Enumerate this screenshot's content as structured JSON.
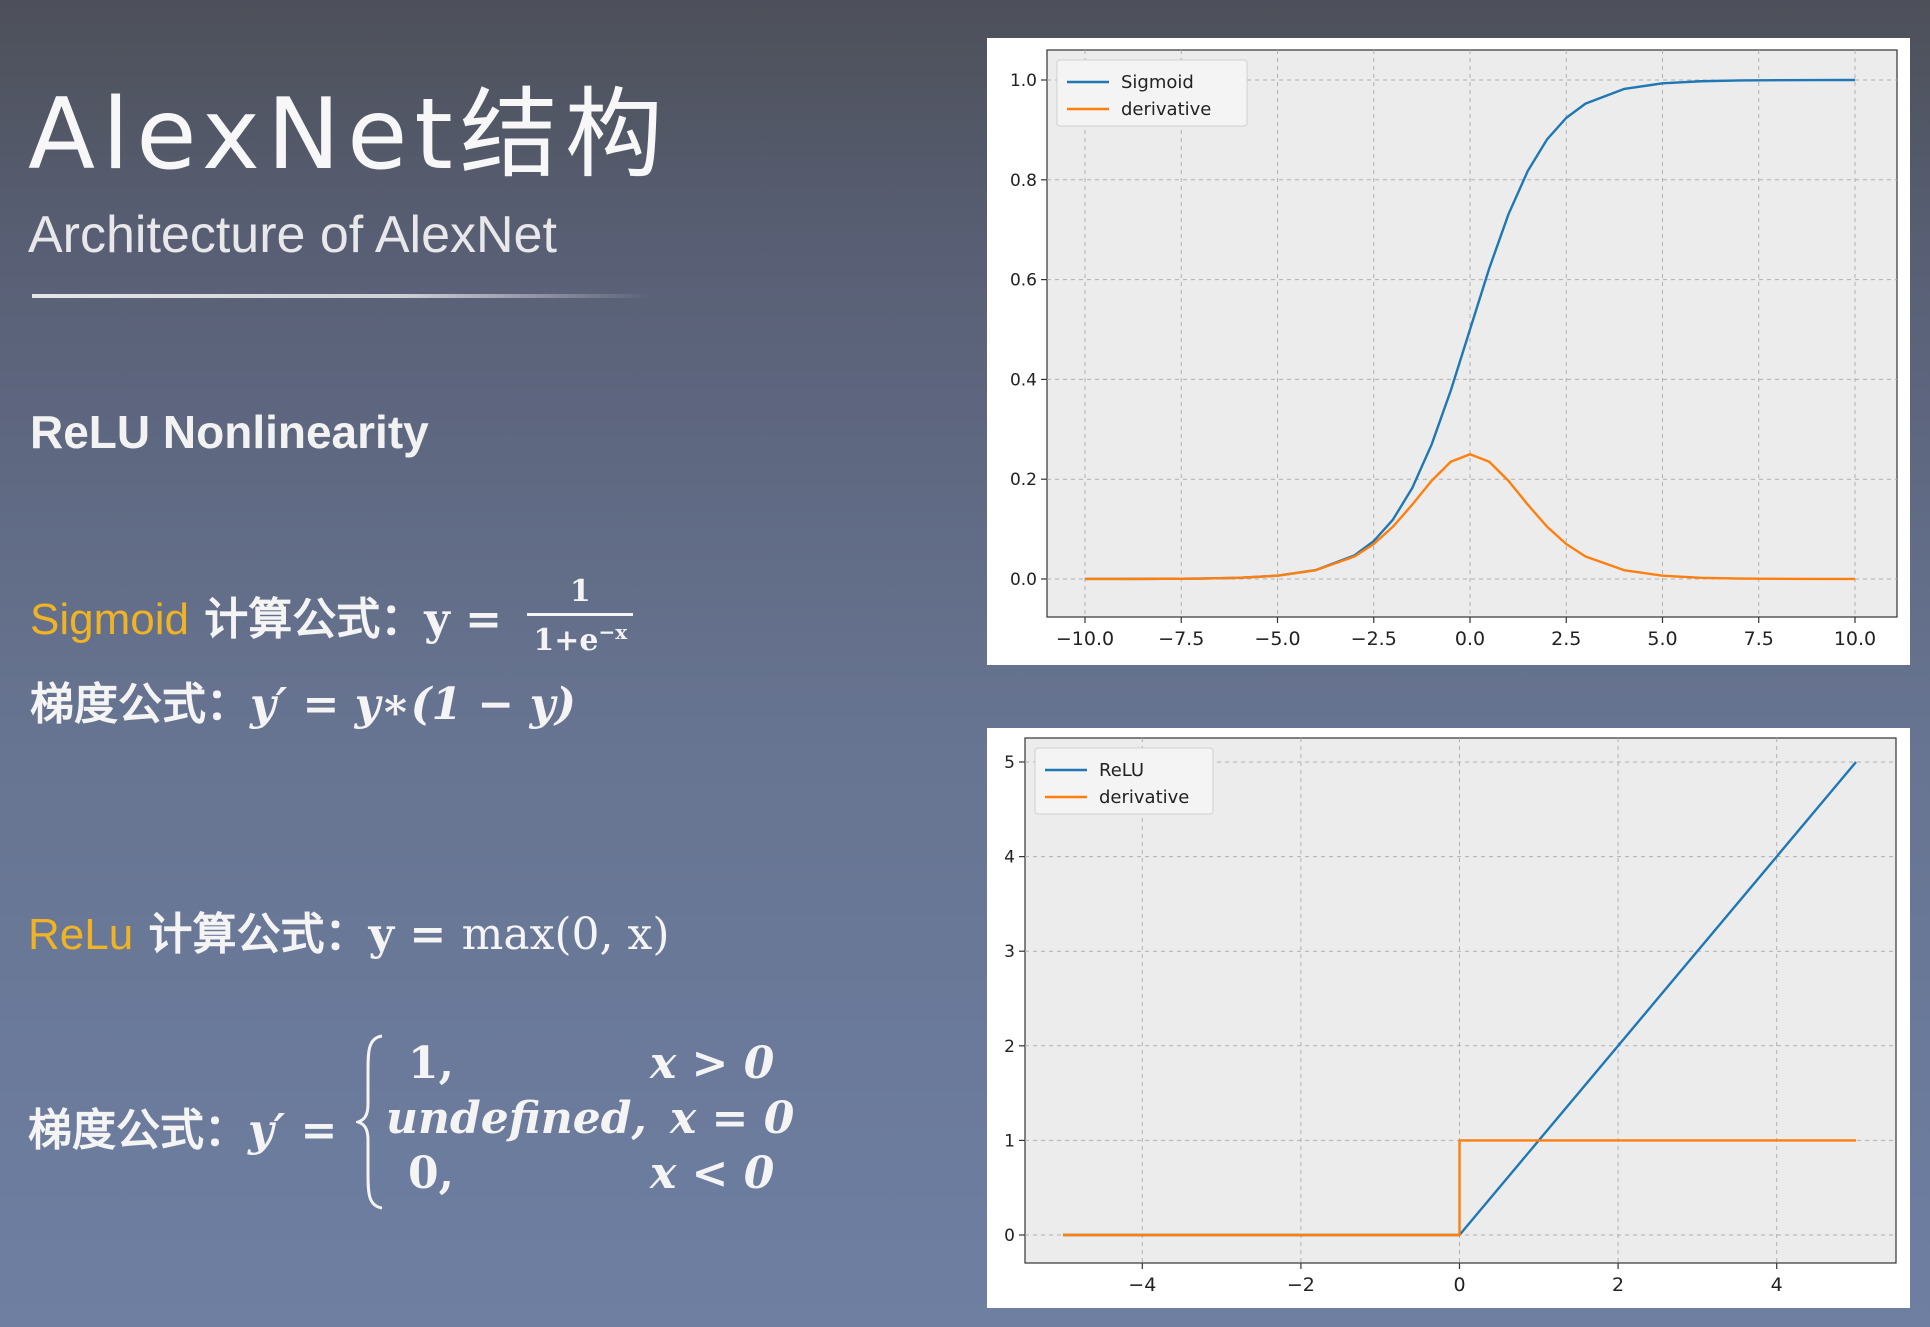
{
  "slide": {
    "title": "AlexNet结构",
    "subtitle": "Architecture of AlexNet",
    "section": "ReLU Nonlinearity",
    "sigmoid": {
      "name": "Sigmoid",
      "calc_label": " 计算公式：",
      "lhs": "y =",
      "frac_num": "1",
      "frac_den_base": "1+e",
      "frac_den_exp": "−x",
      "grad_label": "梯度公式：",
      "grad_expr": "y′ = y∗(1 − y)"
    },
    "relu": {
      "name": "ReLu",
      "calc_label": " 计算公式：",
      "lhs": "y =",
      "expr": "max(0, x)",
      "grad_label": "梯度公式：",
      "grad_lhs": "y′ =",
      "cases": [
        {
          "value": "1,",
          "condition": "x > 0"
        },
        {
          "value": "undefined,",
          "condition": "x = 0"
        },
        {
          "value": "0,",
          "condition": "x < 0"
        }
      ]
    }
  },
  "chart_data": [
    {
      "type": "line",
      "xlim": [
        -10,
        10
      ],
      "ylim": [
        0,
        1
      ],
      "x_ticks": [
        "−10.0",
        "−7.5",
        "−5.0",
        "−2.5",
        "0.0",
        "2.5",
        "5.0",
        "7.5",
        "10.0"
      ],
      "x_tick_values": [
        -10,
        -7.5,
        -5,
        -2.5,
        0,
        2.5,
        5,
        7.5,
        10
      ],
      "y_ticks": [
        "0.0",
        "0.2",
        "0.4",
        "0.6",
        "0.8",
        "1.0"
      ],
      "y_tick_values": [
        0,
        0.2,
        0.4,
        0.6,
        0.8,
        1.0
      ],
      "grid": true,
      "legend": "top-left",
      "series": [
        {
          "name": "Sigmoid",
          "color": "#1f77b4",
          "x": [
            -10,
            -9,
            -8,
            -7,
            -6,
            -5,
            -4,
            -3,
            -2.5,
            -2,
            -1.5,
            -1,
            -0.5,
            0,
            0.5,
            1,
            1.5,
            2,
            2.5,
            3,
            4,
            5,
            6,
            7,
            8,
            9,
            10
          ],
          "y": [
            4.54e-05,
            0.000123,
            0.000335,
            0.000911,
            0.00247,
            0.00669,
            0.018,
            0.0474,
            0.0759,
            0.1192,
            0.1824,
            0.2689,
            0.3775,
            0.5,
            0.6225,
            0.7311,
            0.8176,
            0.8808,
            0.9241,
            0.9526,
            0.982,
            0.9933,
            0.9975,
            0.9991,
            0.9997,
            0.9999,
            1.0
          ]
        },
        {
          "name": "derivative",
          "color": "#ff7f0e",
          "x": [
            -10,
            -9,
            -8,
            -7,
            -6,
            -5,
            -4,
            -3,
            -2.5,
            -2,
            -1.5,
            -1,
            -0.5,
            0,
            0.5,
            1,
            1.5,
            2,
            2.5,
            3,
            4,
            5,
            6,
            7,
            8,
            9,
            10
          ],
          "y": [
            4.54e-05,
            0.000123,
            0.000335,
            0.00091,
            0.00247,
            0.00665,
            0.0177,
            0.0452,
            0.0701,
            0.105,
            0.1491,
            0.1966,
            0.235,
            0.25,
            0.235,
            0.1966,
            0.1491,
            0.105,
            0.0701,
            0.0452,
            0.0177,
            0.00665,
            0.00247,
            0.00091,
            0.000335,
            0.000123,
            4.54e-05
          ]
        }
      ]
    },
    {
      "type": "line",
      "xlim": [
        -5,
        5
      ],
      "ylim": [
        0,
        5
      ],
      "x_ticks": [
        "−4",
        "−2",
        "0",
        "2",
        "4"
      ],
      "x_tick_values": [
        -4,
        -2,
        0,
        2,
        4
      ],
      "y_ticks": [
        "0",
        "1",
        "2",
        "3",
        "4",
        "5"
      ],
      "y_tick_values": [
        0,
        1,
        2,
        3,
        4,
        5
      ],
      "grid": true,
      "legend": "top-left",
      "series": [
        {
          "name": "ReLU",
          "color": "#1f77b4",
          "x": [
            -5,
            0,
            5
          ],
          "y": [
            0,
            0,
            5
          ]
        },
        {
          "name": "derivative",
          "color": "#ff7f0e",
          "x": [
            -5,
            0,
            0,
            5
          ],
          "y": [
            0,
            0,
            1,
            1
          ]
        }
      ]
    }
  ]
}
